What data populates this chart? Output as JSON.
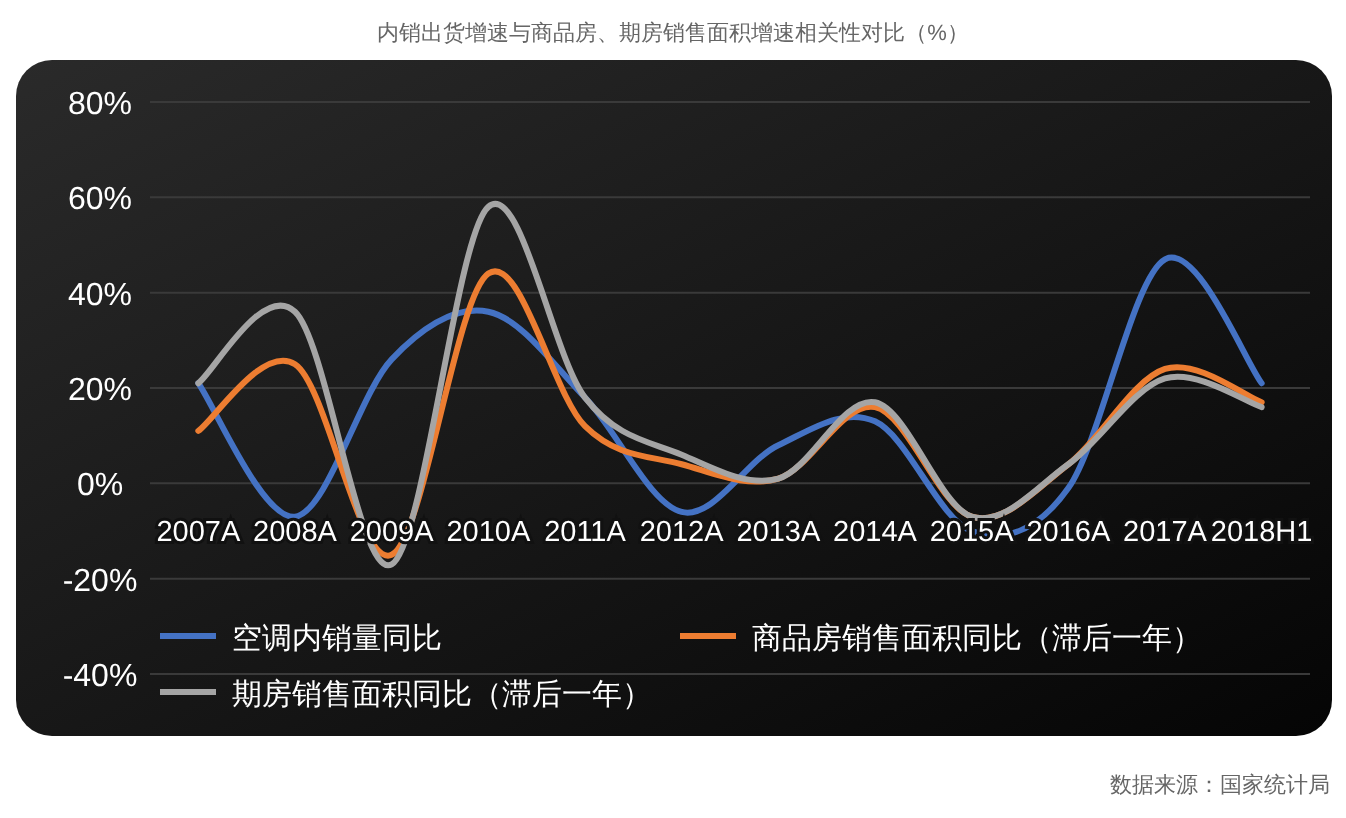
{
  "chart_data": {
    "type": "line",
    "title": "内销出货增速与商品房、期房销售面积增速相关性对比（%）",
    "categories": [
      "2007A",
      "2008A",
      "2009A",
      "2010A",
      "2011A",
      "2012A",
      "2013A",
      "2014A",
      "2015A",
      "2016A",
      "2017A",
      "2018H1"
    ],
    "series": [
      {
        "name": "空调内销量同比",
        "color": "#4472c4",
        "values": [
          21,
          -7,
          26,
          36,
          18,
          -6,
          8,
          13,
          -10,
          -1,
          47,
          21
        ]
      },
      {
        "name": "商品房销售面积同比（滞后一年）",
        "color": "#ed7d31",
        "values": [
          11,
          25,
          -15,
          44,
          12,
          4,
          1,
          16,
          -7,
          4,
          24,
          17
        ]
      },
      {
        "name": "期房销售面积同比（滞后一年）",
        "color": "#a5a5a5",
        "values": [
          21,
          36,
          -17,
          58,
          18,
          6,
          1,
          17,
          -7,
          4,
          22,
          16
        ]
      }
    ],
    "ylim": [
      -40,
      80
    ],
    "yticks": [
      {
        "value": -40,
        "label": "-40%"
      },
      {
        "value": -20,
        "label": "-20%"
      },
      {
        "value": 0,
        "label": "0%"
      },
      {
        "value": 20,
        "label": "20%"
      },
      {
        "value": 40,
        "label": "40%"
      },
      {
        "value": 60,
        "label": "60%"
      },
      {
        "value": 80,
        "label": "80%"
      }
    ],
    "grid": "y",
    "legend": "bottom",
    "marker": "none",
    "line_style": "solid",
    "annotations": [
      "数据来源：国家统计局"
    ]
  }
}
